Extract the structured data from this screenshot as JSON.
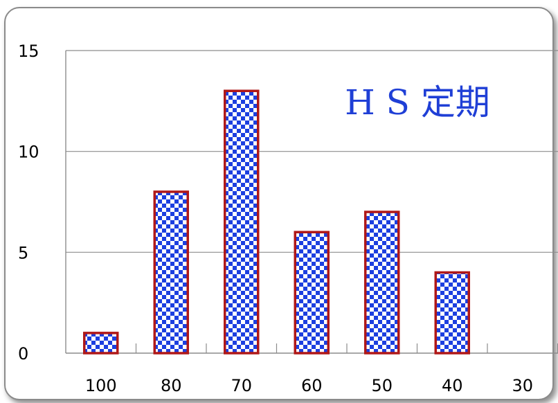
{
  "chart_data": {
    "type": "bar",
    "title": "H S 定期",
    "categories": [
      "100",
      "80",
      "70",
      "60",
      "50",
      "40",
      "30"
    ],
    "values": [
      1,
      8,
      13,
      6,
      7,
      4,
      0
    ],
    "ylim": [
      0,
      15
    ],
    "yticks": [
      "0",
      "5",
      "10",
      "15"
    ],
    "grid": true,
    "legend": "none"
  },
  "colors": {
    "bar_fill_a": "#1c3fe0",
    "bar_fill_b": "#ffffff",
    "bar_border": "#b01818",
    "gridline": "#8c8c8c",
    "title": "#1f3fd6"
  }
}
